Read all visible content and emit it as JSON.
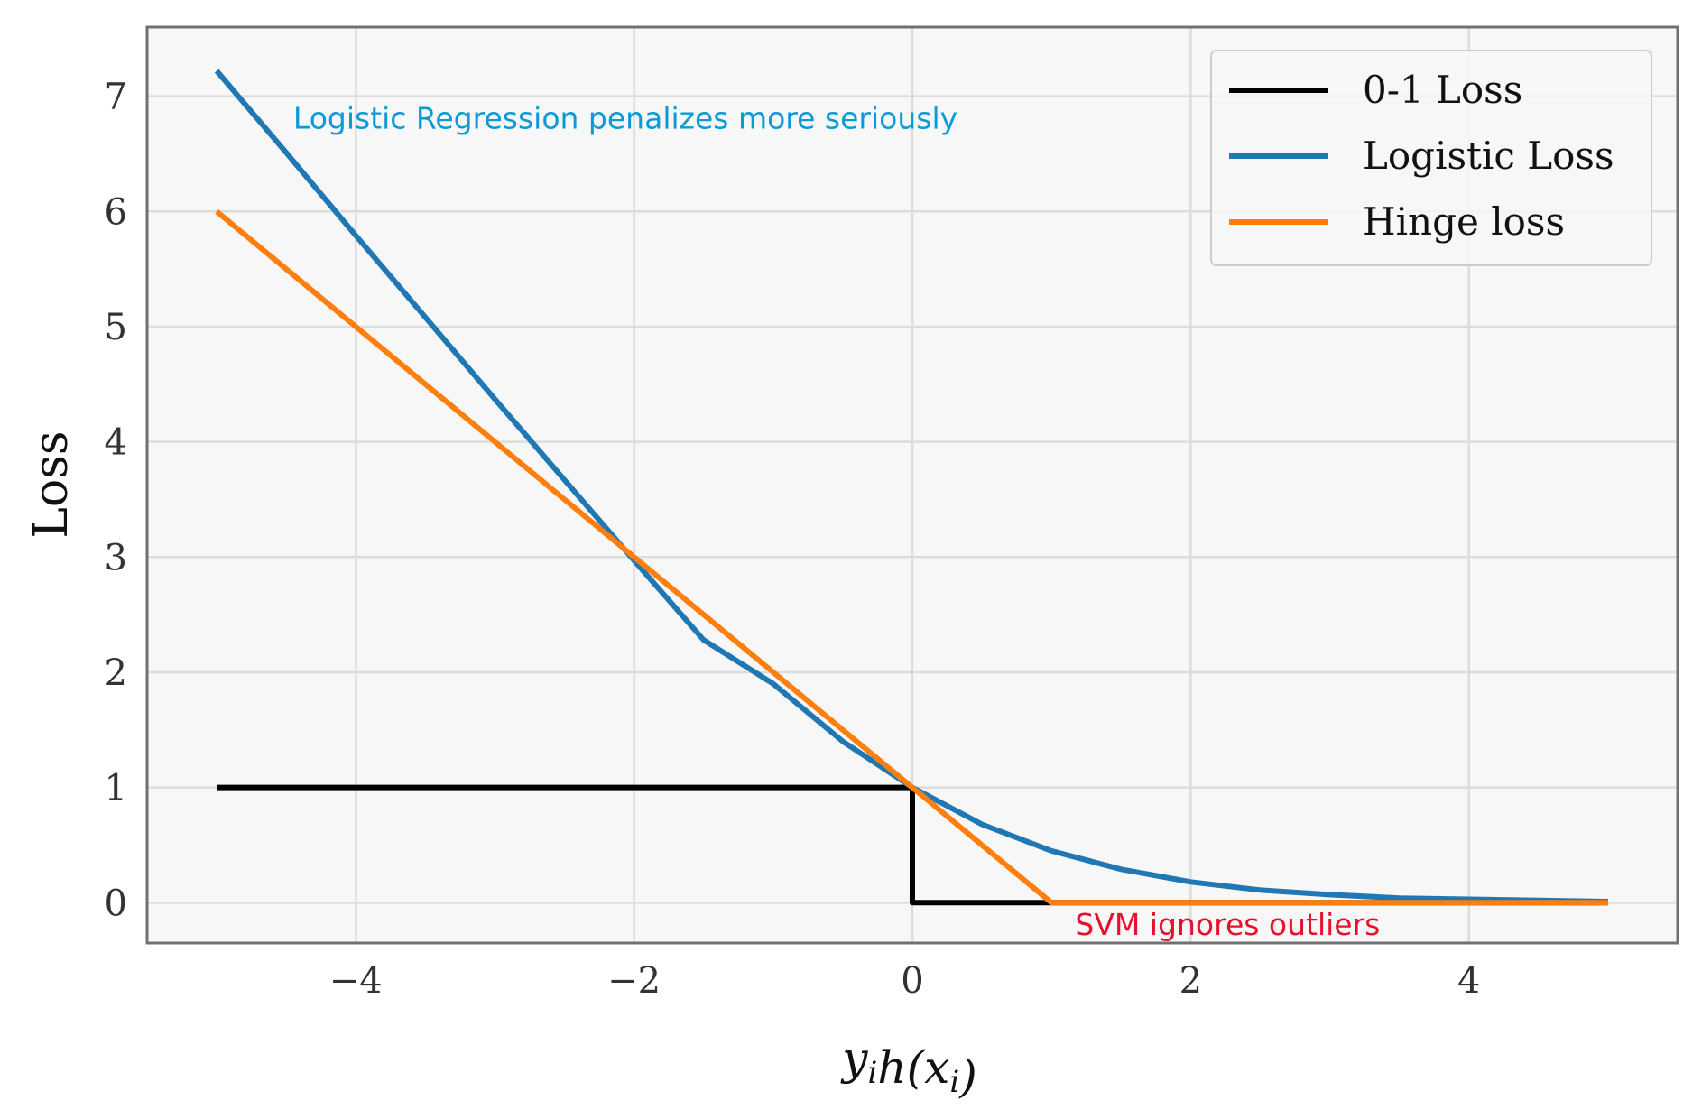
{
  "chart_data": {
    "type": "line",
    "xlabel": "yᵢh(xᵢ)",
    "ylabel": "Loss",
    "xlim": [
      -5.5,
      5.5
    ],
    "ylim": [
      -0.35,
      7.6
    ],
    "x_ticks": [
      -4,
      -2,
      0,
      2,
      4
    ],
    "x_tick_labels": [
      "−4",
      "−2",
      "0",
      "2",
      "4"
    ],
    "y_ticks": [
      0,
      1,
      2,
      3,
      4,
      5,
      6,
      7
    ],
    "y_tick_labels": [
      "0",
      "1",
      "2",
      "3",
      "4",
      "5",
      "6",
      "7"
    ],
    "grid": true,
    "legend_position": "top-right",
    "series": [
      {
        "name": "0-1 Loss",
        "color": "#000000",
        "x": [
          -5,
          0,
          0,
          5
        ],
        "y": [
          1,
          1,
          0,
          0
        ]
      },
      {
        "name": "Logistic Loss",
        "color": "#1f77b4",
        "x": [
          -5,
          -4.5,
          -4,
          -3.5,
          -3,
          -2.5,
          -2,
          -1.5,
          -1,
          -0.5,
          0,
          0.5,
          1,
          1.5,
          2,
          2.5,
          3,
          3.5,
          4,
          4.5,
          5
        ],
        "y": [
          7.22,
          6.51,
          5.79,
          5.08,
          4.37,
          3.67,
          2.97,
          2.28,
          1.9,
          1.4,
          1.0,
          0.68,
          0.45,
          0.29,
          0.18,
          0.11,
          0.07,
          0.04,
          0.03,
          0.02,
          0.01
        ]
      },
      {
        "name": "Hinge loss",
        "color": "#ff7f0e",
        "x": [
          -5,
          1,
          5
        ],
        "y": [
          6,
          0,
          0
        ]
      }
    ],
    "annotations": [
      {
        "text": "Logistic Regression penalizes more seriously",
        "x": -4.45,
        "y": 6.72,
        "color": "#0b9ad8"
      },
      {
        "text": "SVM ignores outliers",
        "x": 1.17,
        "y": -0.28,
        "color": "#e8112d"
      }
    ]
  }
}
